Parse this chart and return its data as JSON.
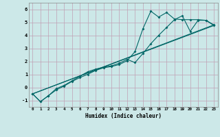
{
  "xlabel": "Humidex (Indice chaleur)",
  "bg_color": "#cce8e8",
  "grid_color": "#c0a0b4",
  "line_color": "#006666",
  "xlim": [
    -0.5,
    23.5
  ],
  "ylim": [
    -1.5,
    6.5
  ],
  "yticks": [
    -1,
    0,
    1,
    2,
    3,
    4,
    5,
    6
  ],
  "xticks": [
    0,
    1,
    2,
    3,
    4,
    5,
    6,
    7,
    8,
    9,
    10,
    11,
    12,
    13,
    14,
    15,
    16,
    17,
    18,
    19,
    20,
    21,
    22,
    23
  ],
  "line1_x": [
    0,
    1,
    2,
    3,
    4,
    5,
    6,
    7,
    8,
    9,
    10,
    11,
    12,
    13,
    14,
    15,
    16,
    17,
    18,
    19,
    20,
    21,
    22,
    23
  ],
  "line1_y": [
    -0.5,
    -1.1,
    -0.65,
    -0.2,
    0.1,
    0.45,
    0.75,
    1.0,
    1.3,
    1.5,
    1.6,
    1.75,
    2.05,
    2.75,
    4.5,
    5.85,
    5.4,
    5.75,
    5.25,
    5.2,
    5.2,
    5.2,
    5.15,
    4.8
  ],
  "line2_x": [
    0,
    1,
    2,
    3,
    4,
    5,
    6,
    7,
    8,
    9,
    10,
    11,
    12,
    13,
    14,
    15,
    16,
    17,
    18,
    19,
    20,
    21,
    22,
    23
  ],
  "line2_y": [
    -0.5,
    -1.1,
    -0.65,
    -0.1,
    0.15,
    0.5,
    0.85,
    1.2,
    1.4,
    1.55,
    1.65,
    1.85,
    2.15,
    1.9,
    2.6,
    3.35,
    4.0,
    4.6,
    5.2,
    5.5,
    4.3,
    5.15,
    5.15,
    4.75
  ],
  "line3_x": [
    0,
    23
  ],
  "line3_y": [
    -0.5,
    4.8
  ],
  "line4_x": [
    0,
    23
  ],
  "line4_y": [
    -0.5,
    4.75
  ]
}
